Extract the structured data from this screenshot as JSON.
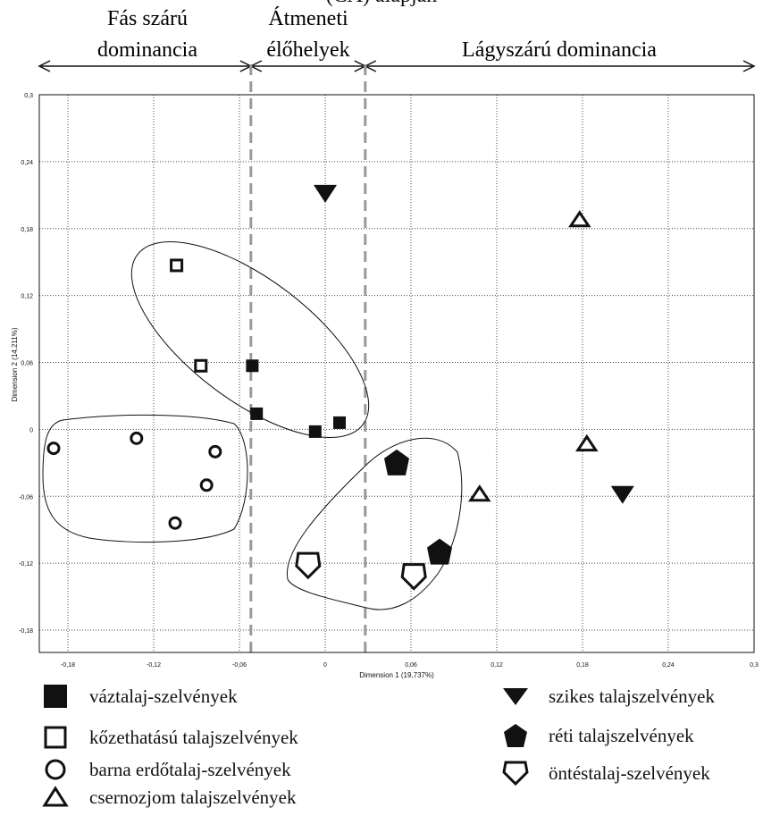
{
  "chart_data": {
    "type": "scatter",
    "title": "(CA) alapján",
    "xlabel": "Dimension 1 (19,737%)",
    "ylabel": "Dimension 2 (14,211%)",
    "xlim": [
      -0.2,
      0.3
    ],
    "ylim": [
      -0.2,
      0.3
    ],
    "x_ticks": [
      "-0,18",
      "-0,12",
      "-0,06",
      "0",
      "0,06",
      "0,12",
      "0,18",
      "0,24",
      "0,3"
    ],
    "y_ticks": [
      "0,3",
      "0,24",
      "0,18",
      "0,12",
      "0,06",
      "0",
      "-0,06",
      "-0,12",
      "-0,18"
    ],
    "grid": "dotted",
    "zones": [
      {
        "label_line1": "Fás szárú",
        "label_line2": "dominancia",
        "x_from": -0.2,
        "x_to": -0.052
      },
      {
        "label_line1": "Átmeneti",
        "label_line2": "élőhelyek",
        "x_from": -0.052,
        "x_to": 0.028
      },
      {
        "label_line1": "Lágyszárú dominancia",
        "label_line2": "",
        "x_from": 0.028,
        "x_to": 0.3
      }
    ],
    "zone_boundaries": [
      -0.052,
      0.028
    ],
    "series": [
      {
        "name": "váztalaj-szelvények",
        "marker": "filled-square",
        "points": [
          [
            -0.051,
            0.057
          ],
          [
            -0.048,
            0.014
          ],
          [
            -0.007,
            -0.002
          ],
          [
            0.01,
            0.006
          ]
        ]
      },
      {
        "name": "kőzethatású talajszelvények",
        "marker": "open-square",
        "points": [
          [
            -0.104,
            0.147
          ],
          [
            -0.087,
            0.057
          ]
        ]
      },
      {
        "name": "barna erdőtalaj-szelvények",
        "marker": "open-circle",
        "points": [
          [
            -0.19,
            -0.017
          ],
          [
            -0.132,
            -0.008
          ],
          [
            -0.077,
            -0.02
          ],
          [
            -0.083,
            -0.05
          ],
          [
            -0.105,
            -0.084
          ]
        ]
      },
      {
        "name": "csernozjom talajszelvények",
        "marker": "open-triangle",
        "points": [
          [
            0.178,
            0.188
          ],
          [
            0.183,
            -0.013
          ],
          [
            0.108,
            -0.058
          ]
        ]
      },
      {
        "name": "szikes talajszelvények",
        "marker": "filled-down-triangle",
        "points": [
          [
            0.0,
            0.212
          ],
          [
            0.208,
            -0.058
          ]
        ]
      },
      {
        "name": "réti talajszelvények",
        "marker": "filled-pentagon",
        "points": [
          [
            0.05,
            -0.03
          ],
          [
            0.08,
            -0.11
          ]
        ]
      },
      {
        "name": "öntéstalaj-szelvények",
        "marker": "open-pentagon",
        "points": [
          [
            -0.012,
            -0.12
          ],
          [
            0.062,
            -0.13
          ]
        ]
      }
    ]
  },
  "legend": {
    "vaz": "váztalaj-szelvények",
    "kozet": "kőzethatású talajszelvények",
    "barna": "barna erdőtalaj-szelvények",
    "csernozjom": "csernozjom talajszelvények",
    "szikes": "szikes talajszelvények",
    "reti": "réti talajszelvények",
    "ontes": "öntéstalaj-szelvények"
  }
}
